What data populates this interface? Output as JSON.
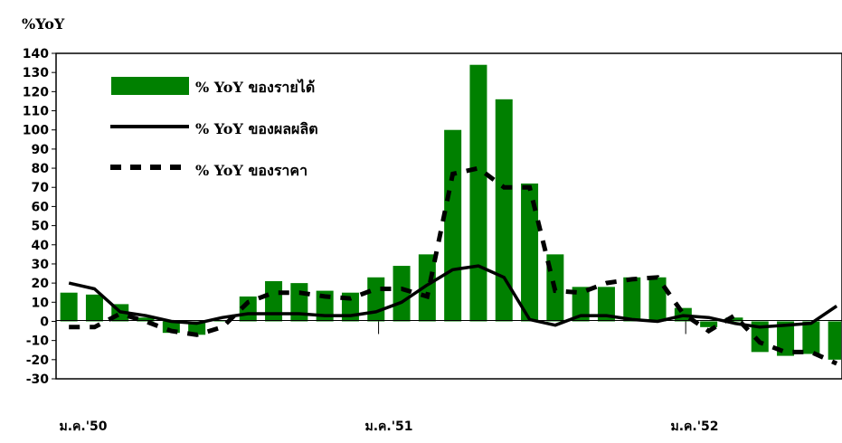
{
  "chart_data": {
    "type": "bar",
    "y_unit_label": "%YoY",
    "ylim": [
      -30,
      140
    ],
    "y_ticks": [
      -30,
      -20,
      -10,
      0,
      10,
      20,
      30,
      40,
      50,
      60,
      70,
      80,
      90,
      100,
      110,
      120,
      130,
      140
    ],
    "x_labels": [
      "ม.ค.'50",
      "ม.ค.'51",
      "ม.ค.'52"
    ],
    "x_label_indices": [
      0,
      12,
      24
    ],
    "legend_position": "top-left",
    "colors": {
      "income": "#008000",
      "production": "#000000",
      "price": "#000000"
    },
    "series": [
      {
        "name": "% YoY ของรายได้",
        "type": "bar",
        "values": [
          15,
          14,
          9,
          2,
          -6,
          -7,
          0,
          13,
          21,
          20,
          16,
          15,
          23,
          29,
          35,
          100,
          134,
          116,
          72,
          35,
          18,
          18,
          23,
          23,
          7,
          -3,
          2,
          -16,
          -18,
          -17,
          -20
        ]
      },
      {
        "name": "% YoY ของผลผลิต",
        "type": "line",
        "values": [
          20,
          17,
          5,
          3,
          0,
          -1,
          2,
          4,
          4,
          4,
          3,
          3,
          5,
          10,
          19,
          27,
          29,
          23,
          1,
          -2,
          3,
          3,
          1,
          0,
          3,
          2,
          -1,
          -3,
          -2,
          -1,
          8
        ]
      },
      {
        "name": "% YoY ของราคา",
        "type": "line-dashed",
        "values": [
          -3,
          -3,
          4,
          0,
          -5,
          -7,
          -3,
          10,
          15,
          15,
          13,
          12,
          17,
          17,
          13,
          77,
          80,
          70,
          70,
          16,
          15,
          20,
          22,
          23,
          4,
          -5,
          3,
          -11,
          -16,
          -16,
          -22
        ]
      }
    ]
  }
}
